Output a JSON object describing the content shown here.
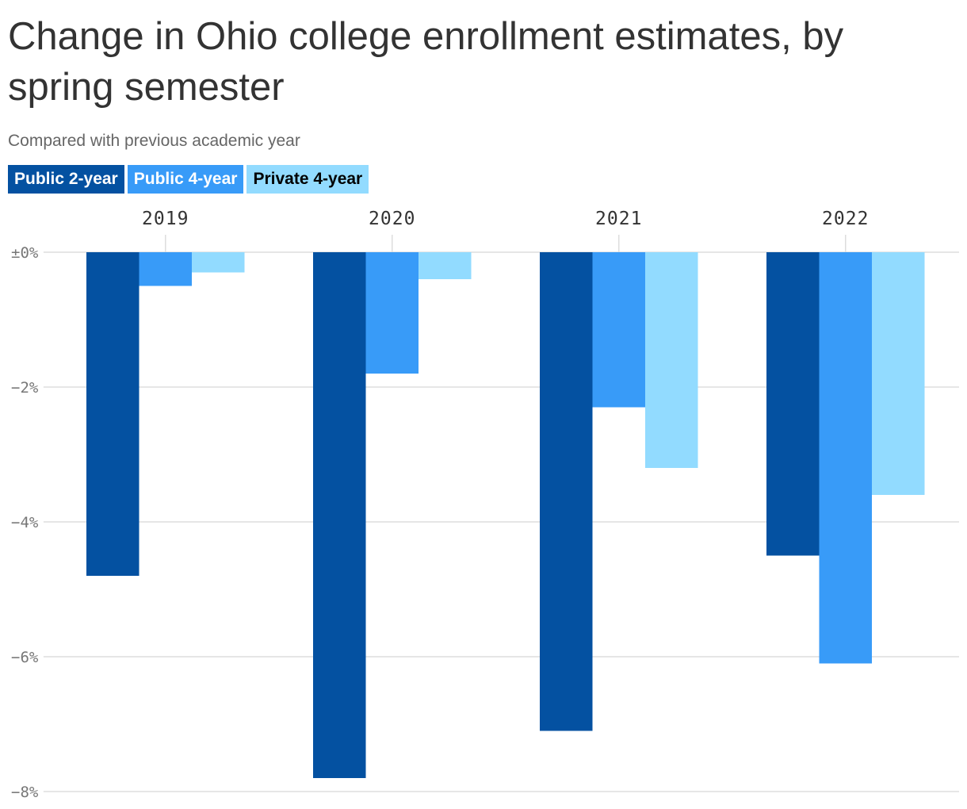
{
  "chart_data": {
    "type": "bar",
    "title": "Change in Ohio college enrollment estimates, by spring semester",
    "subtitle": "Compared with previous academic year",
    "categories": [
      "2019",
      "2020",
      "2021",
      "2022"
    ],
    "series": [
      {
        "name": "Public 2-year",
        "color": "#0451A1",
        "legend_text_color": "#ffffff",
        "values": [
          -4.8,
          -7.8,
          -7.1,
          -4.5
        ]
      },
      {
        "name": "Public 4-year",
        "color": "#389BF8",
        "legend_text_color": "#ffffff",
        "values": [
          -0.5,
          -1.8,
          -2.3,
          -6.1
        ]
      },
      {
        "name": "Private 4-year",
        "color": "#92DBFF",
        "legend_text_color": "#000000",
        "values": [
          -0.3,
          -0.4,
          -3.2,
          -3.6
        ]
      }
    ],
    "y_ticks": [
      {
        "value": 0,
        "label": "±0%"
      },
      {
        "value": -2,
        "label": "−2%"
      },
      {
        "value": -4,
        "label": "−4%"
      },
      {
        "value": -6,
        "label": "−6%"
      },
      {
        "value": -8,
        "label": "−8%"
      }
    ],
    "ylim": [
      -8,
      0
    ],
    "xlabel": "",
    "ylabel": "",
    "grid": true,
    "legend_position": "top-left",
    "x_axis_position": "top"
  }
}
